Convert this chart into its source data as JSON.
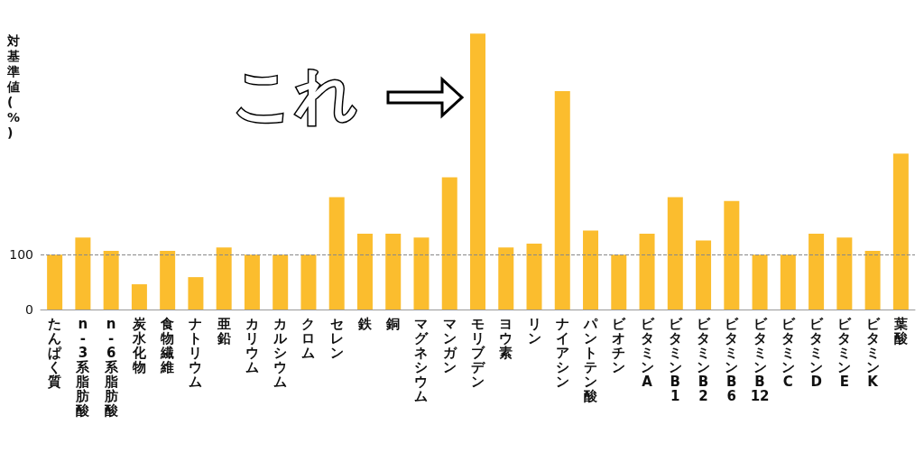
{
  "chart_data": {
    "type": "bar",
    "ylabel": "対基準値(%)",
    "categories": [
      "たんぱく質",
      "n-3系脂肪酸",
      "n-6系脂肪酸",
      "炭水化物",
      "食物繊維",
      "ナトリウム",
      "亜鉛",
      "カリウム",
      "カルシウム",
      "クロム",
      "セレン",
      "鉄",
      "銅",
      "マグネシウム",
      "マンガン",
      "モリブデン",
      "ヨウ素",
      "リン",
      "ナイアシン",
      "パントテン酸",
      "ビオチン",
      "ビタミンA",
      "ビタミンB1",
      "ビタミンB2",
      "ビタミンB6",
      "ビタミンB12",
      "ビタミンC",
      "ビタミンD",
      "ビタミンE",
      "ビタミンK",
      "葉酸"
    ],
    "values": [
      100,
      131,
      107,
      46,
      107,
      59,
      113,
      100,
      100,
      100,
      205,
      138,
      138,
      131,
      241,
      503,
      113,
      120,
      398,
      144,
      100,
      138,
      205,
      126,
      198,
      100,
      100,
      138,
      131,
      107,
      284
    ],
    "color": "#fbbd2e",
    "ylim": [
      0,
      505
    ],
    "yticks": [
      0,
      100
    ],
    "grid": false,
    "ref_lines": [
      {
        "axis": "y",
        "value": 100,
        "color": "#888888",
        "line_style": "dashed"
      }
    ],
    "annotations": [
      "これ"
    ]
  }
}
